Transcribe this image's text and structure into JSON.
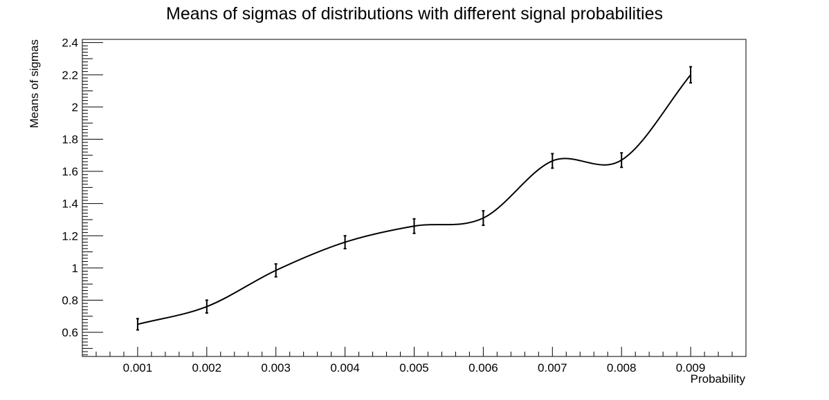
{
  "chart_data": {
    "type": "line",
    "title": "Means of sigmas of distributions with different signal probabilities",
    "xlabel": "Probability",
    "ylabel": "Means of sigmas",
    "xlim": [
      0.0002,
      0.0098
    ],
    "ylim": [
      0.45,
      2.42
    ],
    "x_ticks": [
      "0.001",
      "0.002",
      "0.003",
      "0.004",
      "0.005",
      "0.006",
      "0.007",
      "0.008",
      "0.009"
    ],
    "y_ticks": [
      "0.6",
      "0.8",
      "1",
      "1.2",
      "1.4",
      "1.6",
      "1.8",
      "2",
      "2.2",
      "2.4"
    ],
    "grid": false,
    "legend": "none",
    "series": [
      {
        "name": "Means of sigmas",
        "x": [
          0.001,
          0.002,
          0.003,
          0.004,
          0.005,
          0.006,
          0.007,
          0.008,
          0.009
        ],
        "y": [
          0.65,
          0.76,
          0.985,
          1.16,
          1.26,
          1.31,
          1.665,
          1.67,
          2.2
        ],
        "yerr": [
          0.035,
          0.04,
          0.04,
          0.04,
          0.045,
          0.045,
          0.045,
          0.045,
          0.05
        ]
      }
    ]
  }
}
